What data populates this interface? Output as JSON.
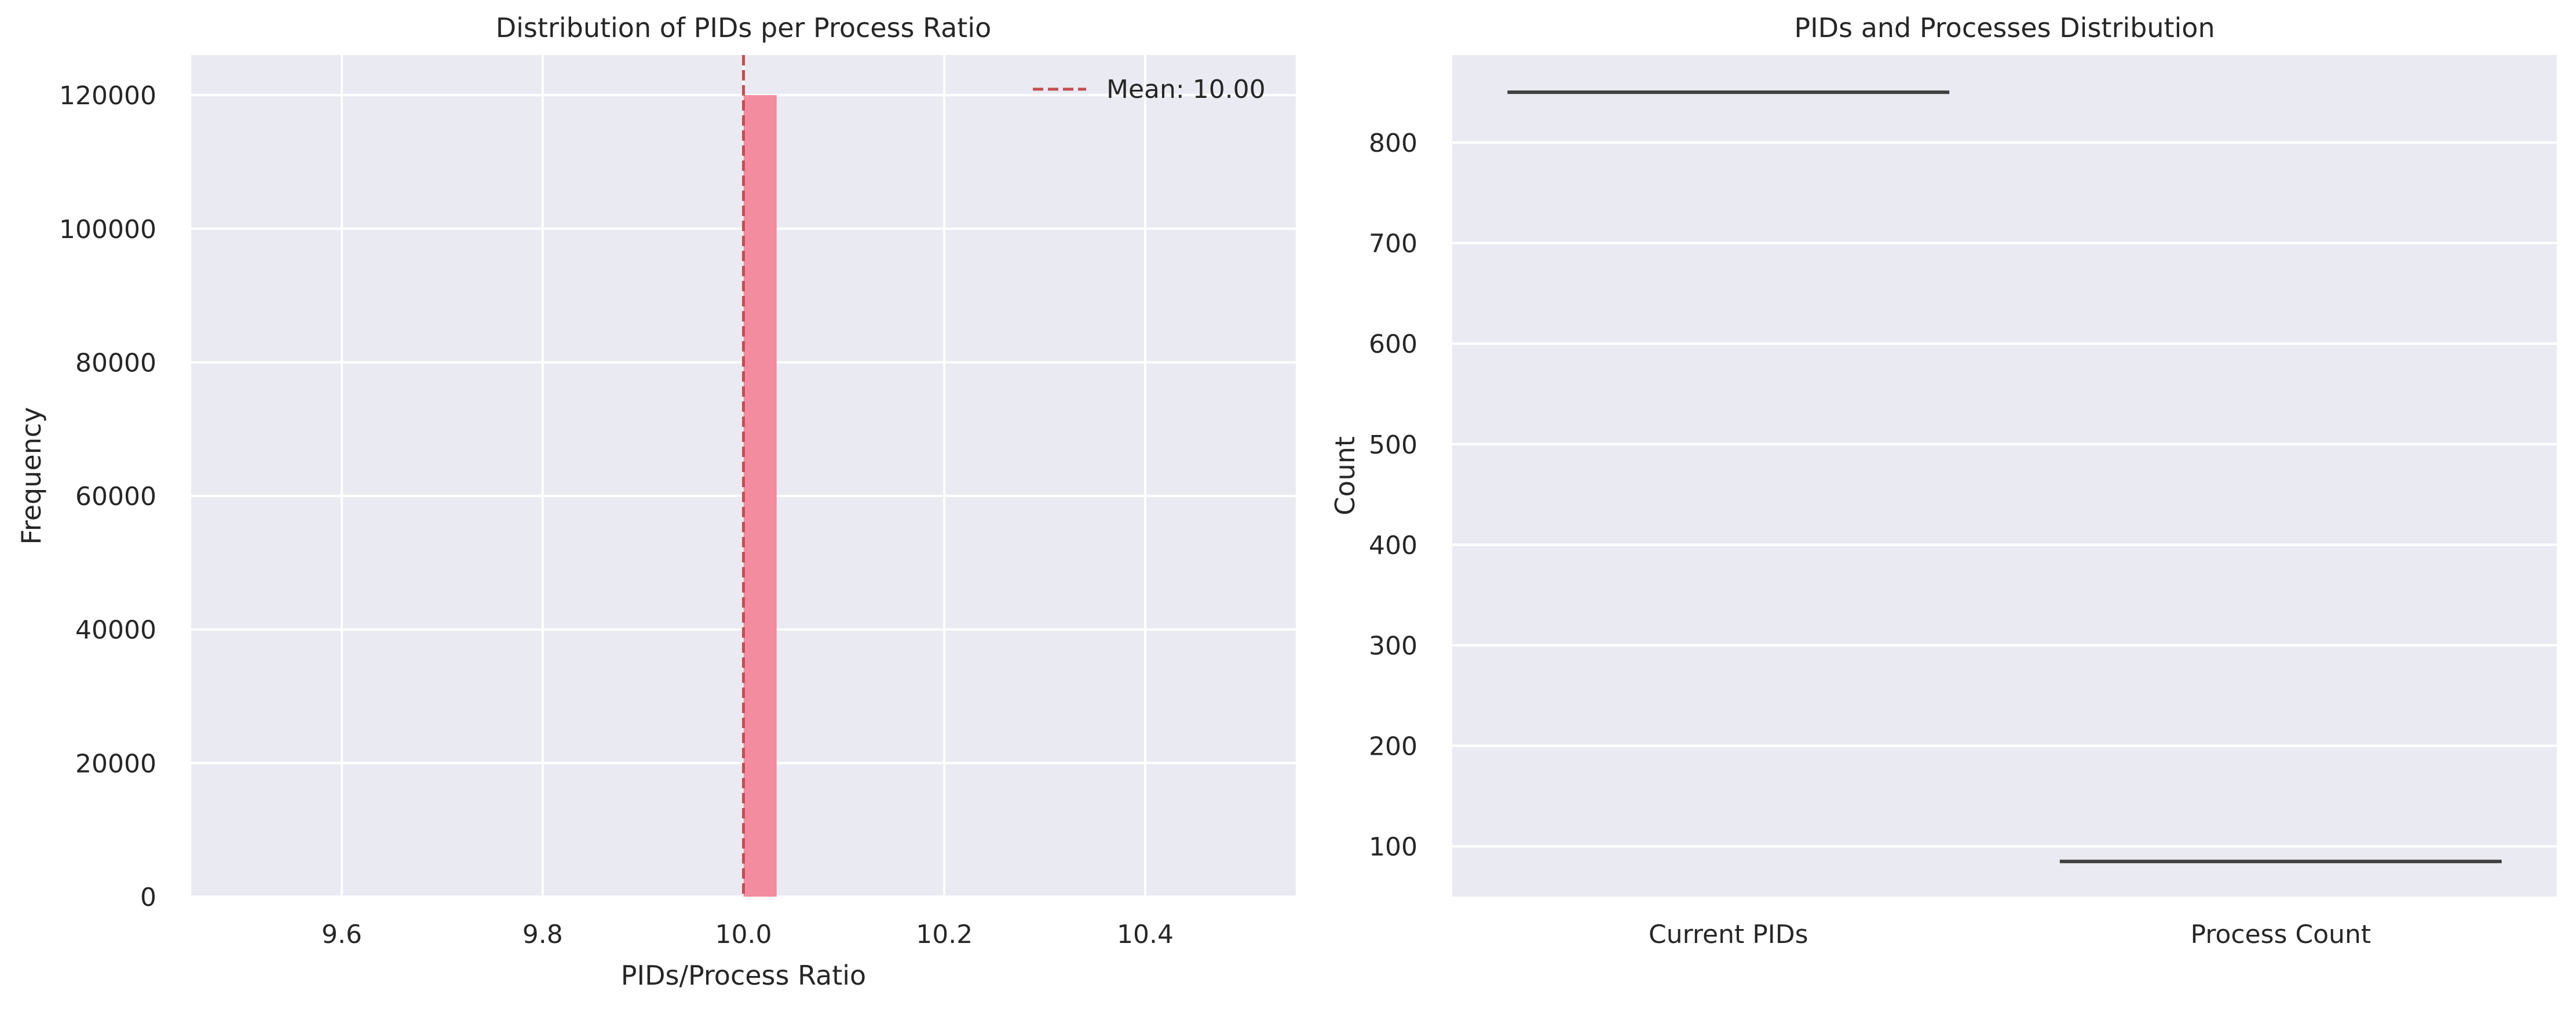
{
  "colors": {
    "background": "#eaeaf2",
    "grid": "#ffffff",
    "bar": "#f48ca0",
    "mean_line": "#c44e52",
    "box_line": "#3f3f3f",
    "text": "#262626"
  },
  "chart_data": [
    {
      "type": "bar",
      "title": "Distribution of PIDs per Process Ratio",
      "xlabel": "PIDs/Process Ratio",
      "ylabel": "Frequency",
      "xlim": [
        9.45,
        10.55
      ],
      "ylim": [
        0,
        126000
      ],
      "x_ticks": [
        9.6,
        9.8,
        10.0,
        10.2,
        10.4
      ],
      "x_tick_labels": [
        "9.6",
        "9.8",
        "10.0",
        "10.2",
        "10.4"
      ],
      "y_ticks": [
        0,
        20000,
        40000,
        60000,
        80000,
        100000,
        120000
      ],
      "y_tick_labels": [
        "0",
        "20000",
        "40000",
        "60000",
        "80000",
        "100000",
        "120000"
      ],
      "bins": [
        {
          "start": 10.0,
          "end": 10.033,
          "value": 120000
        }
      ],
      "mean": 10.0,
      "legend": {
        "position": "top-right",
        "entries": [
          {
            "label": "Mean: 10.00",
            "style": "dashed"
          }
        ]
      },
      "grid": true
    },
    {
      "type": "box",
      "title": "PIDs and Processes Distribution",
      "xlabel": "",
      "ylabel": "Count",
      "ylim": [
        50,
        887
      ],
      "categories": [
        "Current PIDs",
        "Process Count"
      ],
      "values": [
        850,
        85
      ],
      "y_ticks": [
        100,
        200,
        300,
        400,
        500,
        600,
        700,
        800
      ],
      "y_tick_labels": [
        "100",
        "200",
        "300",
        "400",
        "500",
        "600",
        "700",
        "800"
      ],
      "grid": true
    }
  ]
}
